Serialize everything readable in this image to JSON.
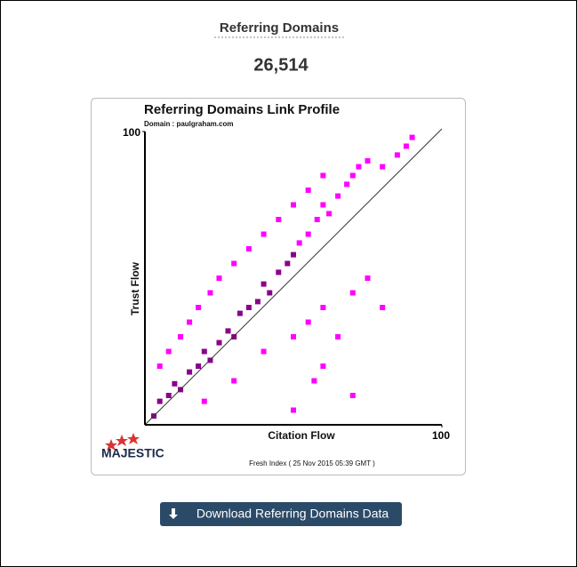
{
  "header": {
    "title": "Referring Domains",
    "count": "26,514"
  },
  "chart_data": {
    "type": "scatter",
    "title": "Referring Domains Link Profile",
    "subtitle": "Domain : paulgraham.com",
    "x_label": "Citation Flow",
    "y_label": "Trust Flow",
    "xlim": [
      0,
      100
    ],
    "ylim": [
      0,
      100
    ],
    "xticks": [
      100
    ],
    "yticks": [
      100
    ],
    "series": [
      {
        "color": "#8b008b",
        "x": [
          3,
          5,
          8,
          10,
          12,
          15,
          18,
          20,
          22,
          25,
          28,
          30,
          32,
          35,
          38,
          40,
          42,
          45,
          48,
          50
        ],
        "y": [
          3,
          8,
          10,
          14,
          12,
          18,
          20,
          25,
          22,
          28,
          32,
          30,
          38,
          40,
          42,
          48,
          45,
          52,
          55,
          58
        ]
      },
      {
        "color": "#ff00ff",
        "x": [
          52,
          55,
          58,
          60,
          62,
          65,
          68,
          70,
          72,
          75,
          80,
          85,
          88,
          90,
          5,
          8,
          12,
          15,
          18,
          22,
          25,
          30,
          35,
          40,
          45,
          50,
          55,
          60,
          20,
          30,
          40,
          50,
          55,
          60,
          65,
          70,
          75,
          80,
          60,
          70,
          50,
          57
        ],
        "y": [
          62,
          65,
          70,
          75,
          72,
          78,
          82,
          85,
          88,
          90,
          88,
          92,
          95,
          98,
          20,
          25,
          30,
          35,
          40,
          45,
          50,
          55,
          60,
          65,
          70,
          75,
          80,
          85,
          8,
          15,
          25,
          30,
          35,
          40,
          30,
          45,
          50,
          40,
          20,
          10,
          5,
          15
        ]
      }
    ],
    "logo": "MAJESTIC",
    "note": "Fresh Index ( 25 Nov 2015 05:39 GMT )"
  },
  "button": {
    "label": "Download Referring Domains Data"
  }
}
